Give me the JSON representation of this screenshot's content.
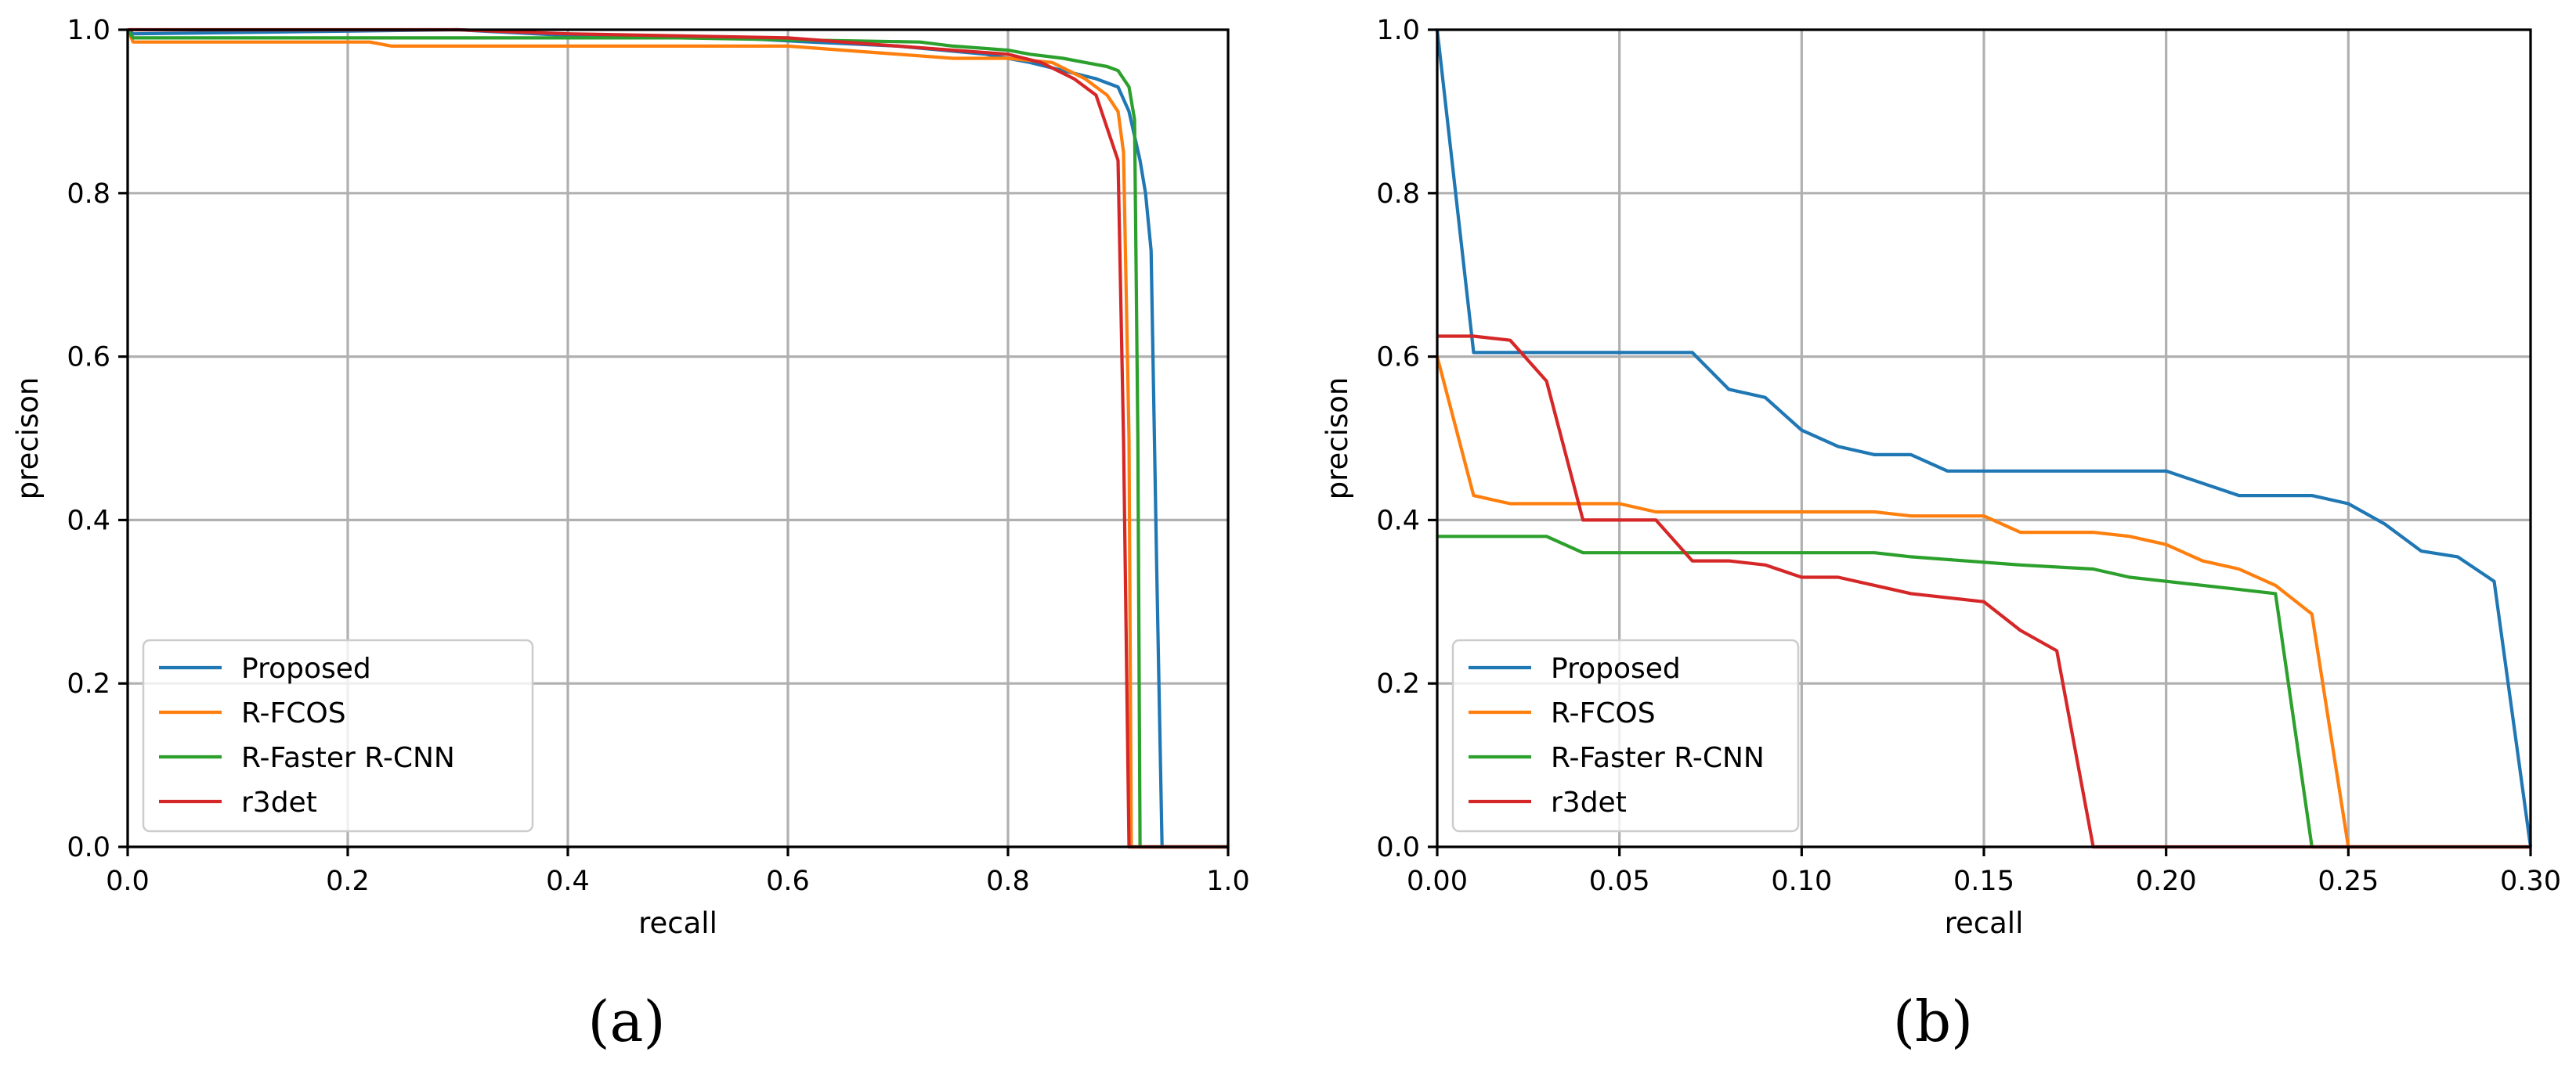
{
  "chart_data": [
    {
      "type": "line",
      "caption": "(a)",
      "xlabel": "recall",
      "ylabel": "precison",
      "xlim": [
        0.0,
        1.0
      ],
      "ylim": [
        0.0,
        1.0
      ],
      "xticks": [
        "0.0",
        "0.2",
        "0.4",
        "0.6",
        "0.8",
        "1.0"
      ],
      "yticks": [
        "0.0",
        "0.2",
        "0.4",
        "0.6",
        "0.8",
        "1.0"
      ],
      "grid": true,
      "legend_position": "lower-left",
      "series": [
        {
          "name": "Proposed",
          "color": "#1f77b4",
          "x": [
            0.0,
            0.005,
            0.3,
            0.37,
            0.45,
            0.55,
            0.62,
            0.7,
            0.78,
            0.82,
            0.85,
            0.88,
            0.9,
            0.91,
            0.92,
            0.925,
            0.93,
            0.935,
            0.94,
            0.96,
            1.0
          ],
          "y": [
            1.0,
            0.995,
            1.0,
            0.995,
            0.99,
            0.99,
            0.985,
            0.98,
            0.97,
            0.96,
            0.95,
            0.94,
            0.93,
            0.9,
            0.84,
            0.8,
            0.73,
            0.35,
            0.0,
            0.0,
            0.0
          ]
        },
        {
          "name": "R-FCOS",
          "color": "#ff7f0e",
          "x": [
            0.0,
            0.005,
            0.22,
            0.24,
            0.4,
            0.6,
            0.65,
            0.7,
            0.75,
            0.8,
            0.84,
            0.87,
            0.89,
            0.9,
            0.905,
            0.91,
            0.912,
            1.0
          ],
          "y": [
            1.0,
            0.985,
            0.985,
            0.98,
            0.98,
            0.98,
            0.975,
            0.97,
            0.965,
            0.965,
            0.96,
            0.94,
            0.92,
            0.9,
            0.85,
            0.5,
            0.0,
            0.0
          ],
          "note": "at (0.912, 0.0) the line drops to zero and continues along recall axis"
        },
        {
          "name": "R-Faster R-CNN",
          "color": "#2ca02c",
          "x": [
            0.0,
            0.005,
            0.2,
            0.3,
            0.5,
            0.72,
            0.75,
            0.8,
            0.82,
            0.85,
            0.87,
            0.89,
            0.9,
            0.91,
            0.915,
            0.918,
            0.92,
            1.0
          ],
          "y": [
            1.0,
            0.99,
            0.99,
            0.99,
            0.99,
            0.985,
            0.98,
            0.975,
            0.97,
            0.965,
            0.96,
            0.955,
            0.95,
            0.93,
            0.89,
            0.5,
            0.0,
            0.0
          ]
        },
        {
          "name": "r3det",
          "color": "#d62728",
          "x": [
            0.0,
            0.3,
            0.4,
            0.6,
            0.7,
            0.75,
            0.8,
            0.83,
            0.86,
            0.88,
            0.9,
            0.905,
            0.91,
            1.0
          ],
          "y": [
            1.0,
            1.0,
            0.995,
            0.99,
            0.98,
            0.975,
            0.97,
            0.96,
            0.94,
            0.92,
            0.84,
            0.5,
            0.0,
            0.0
          ]
        }
      ]
    },
    {
      "type": "line",
      "caption": "(b)",
      "xlabel": "recall",
      "ylabel": "precison",
      "xlim": [
        0.0,
        0.3
      ],
      "ylim": [
        0.0,
        1.0
      ],
      "xticks": [
        "0.00",
        "0.05",
        "0.10",
        "0.15",
        "0.20",
        "0.25",
        "0.30"
      ],
      "yticks": [
        "0.0",
        "0.2",
        "0.4",
        "0.6",
        "0.8",
        "1.0"
      ],
      "grid": true,
      "legend_position": "lower-left",
      "series": [
        {
          "name": "Proposed",
          "color": "#1f77b4",
          "x": [
            0.0,
            0.01,
            0.07,
            0.08,
            0.09,
            0.1,
            0.11,
            0.12,
            0.13,
            0.14,
            0.15,
            0.2,
            0.22,
            0.24,
            0.25,
            0.26,
            0.27,
            0.28,
            0.29,
            0.3
          ],
          "y": [
            1.0,
            0.605,
            0.605,
            0.56,
            0.55,
            0.51,
            0.49,
            0.48,
            0.48,
            0.46,
            0.46,
            0.46,
            0.43,
            0.43,
            0.42,
            0.395,
            0.362,
            0.355,
            0.325,
            0.0
          ]
        },
        {
          "name": "R-FCOS",
          "color": "#ff7f0e",
          "x": [
            0.0,
            0.01,
            0.02,
            0.05,
            0.06,
            0.12,
            0.13,
            0.15,
            0.16,
            0.18,
            0.19,
            0.2,
            0.21,
            0.22,
            0.23,
            0.24,
            0.25,
            0.3
          ],
          "y": [
            0.6,
            0.43,
            0.42,
            0.42,
            0.41,
            0.41,
            0.405,
            0.405,
            0.385,
            0.385,
            0.38,
            0.37,
            0.35,
            0.34,
            0.32,
            0.285,
            0.0,
            0.0
          ]
        },
        {
          "name": "R-Faster R-CNN",
          "color": "#2ca02c",
          "x": [
            0.0,
            0.03,
            0.04,
            0.12,
            0.13,
            0.16,
            0.18,
            0.19,
            0.2,
            0.22,
            0.23,
            0.24,
            0.3
          ],
          "y": [
            0.38,
            0.38,
            0.36,
            0.36,
            0.355,
            0.345,
            0.34,
            0.33,
            0.325,
            0.315,
            0.31,
            0.0,
            0.0
          ]
        },
        {
          "name": "r3det",
          "color": "#d62728",
          "x": [
            0.0,
            0.01,
            0.02,
            0.03,
            0.04,
            0.06,
            0.07,
            0.08,
            0.09,
            0.1,
            0.11,
            0.12,
            0.13,
            0.15,
            0.16,
            0.17,
            0.18,
            0.3
          ],
          "y": [
            0.625,
            0.625,
            0.62,
            0.57,
            0.4,
            0.4,
            0.35,
            0.35,
            0.345,
            0.33,
            0.33,
            0.32,
            0.31,
            0.3,
            0.265,
            0.24,
            0.0,
            0.0
          ]
        }
      ]
    }
  ]
}
